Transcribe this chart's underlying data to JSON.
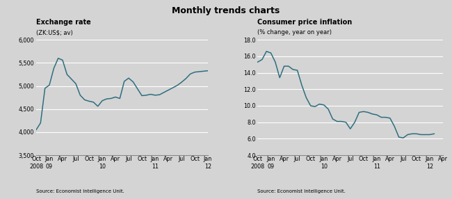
{
  "title": "Monthly trends charts",
  "bg_color": "#d4d4d4",
  "plot_bg_color": "#d4d4d4",
  "line_color": "#2e6e7e",
  "chart1": {
    "title": "Exchange rate",
    "subtitle": "(ZK:US$; av)",
    "ylim": [
      3500,
      6000
    ],
    "yticks": [
      3500,
      4000,
      4500,
      5000,
      5500,
      6000
    ],
    "source": "Source: Economist Intelligence Unit.",
    "data": [
      4050,
      4200,
      4950,
      5020,
      5380,
      5600,
      5560,
      5250,
      5150,
      5050,
      4800,
      4700,
      4670,
      4650,
      4560,
      4680,
      4720,
      4730,
      4760,
      4730,
      5100,
      5170,
      5090,
      4940,
      4790,
      4800,
      4820,
      4800,
      4810,
      4860,
      4910,
      4960,
      5010,
      5080,
      5160,
      5260,
      5300,
      5310,
      5320,
      5330
    ]
  },
  "chart2": {
    "title": "Consumer price inflation",
    "subtitle": "(% change, year on year)",
    "ylim": [
      4.0,
      18.0
    ],
    "yticks": [
      4.0,
      6.0,
      8.0,
      10.0,
      12.0,
      14.0,
      16.0,
      18.0
    ],
    "source": "Source: Economist Intelligence Unit.",
    "data": [
      15.3,
      15.6,
      16.6,
      16.4,
      15.3,
      13.4,
      14.8,
      14.8,
      14.4,
      14.3,
      12.5,
      11.0,
      10.0,
      9.9,
      10.2,
      10.1,
      9.6,
      8.4,
      8.1,
      8.1,
      8.0,
      7.2,
      8.0,
      9.2,
      9.3,
      9.2,
      9.0,
      8.9,
      8.6,
      8.6,
      8.5,
      7.5,
      6.2,
      6.1,
      6.5,
      6.6,
      6.6,
      6.5,
      6.5,
      6.5,
      6.6
    ]
  },
  "x_tick_labels_chart1": [
    "Oct\n2008",
    "Jan\n09",
    "Apr",
    "Jul",
    "Oct",
    "Jan\n10",
    "Apr",
    "Jul",
    "Oct",
    "Jan\n11",
    "Apr",
    "Jul",
    "Oct",
    "Jan\n12"
  ],
  "x_tick_labels_chart2": [
    "Oct\n2008",
    "Jan\n09",
    "Apr",
    "Jul",
    "Oct",
    "Jan\n10",
    "Apr",
    "Jul",
    "Oct",
    "Jan\n11",
    "Apr",
    "Jul",
    "Oct",
    "Jan\n12",
    "Apr"
  ],
  "x_tick_positions_chart1": [
    0,
    3,
    6,
    9,
    12,
    15,
    18,
    21,
    24,
    27,
    30,
    33,
    36,
    39
  ],
  "x_tick_positions_chart2": [
    0,
    3,
    6,
    9,
    12,
    15,
    18,
    21,
    24,
    27,
    30,
    33,
    36,
    39,
    42
  ]
}
